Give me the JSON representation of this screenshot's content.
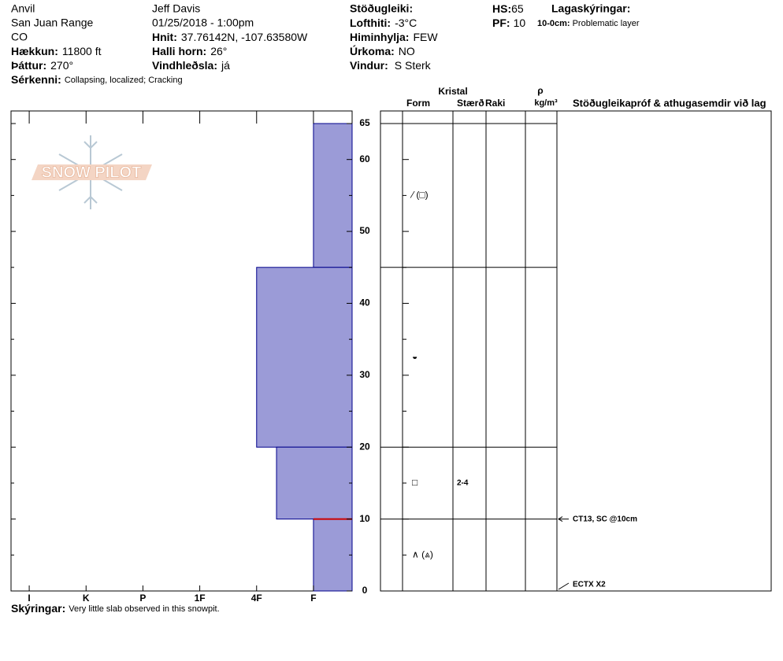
{
  "header": {
    "location": "Anvil",
    "range": "San Juan Range",
    "state": "CO",
    "elevation": {
      "label": "Hækkun:",
      "value": "11800 ft"
    },
    "aspect": {
      "label": "Þáttur:",
      "value": "270°"
    },
    "features": {
      "label": "Sérkenni:",
      "value": "Collapsing, localized;  Cracking"
    },
    "observer": "Jeff Davis",
    "datetime": "01/25/2018 - 1:00pm",
    "coords": {
      "label": "Hnit:",
      "value": "37.76142N, -107.63580W"
    },
    "slope": {
      "label": "Halli horn:",
      "value": "26°"
    },
    "wind_loading": {
      "label": "Vindhleðsla:",
      "value": "já"
    },
    "stability": {
      "label": "Stöðugleiki:"
    },
    "air_temp": {
      "label": "Lofthiti:",
      "value": "-3°C"
    },
    "sky": {
      "label": "Himinhylja:",
      "value": "FEW"
    },
    "precip": {
      "label": "Úrkoma:",
      "value": "NO"
    },
    "wind": {
      "label": "Vindur:",
      "value": "S Sterk"
    },
    "hs": {
      "label": "HS:",
      "value": "65"
    },
    "pf": {
      "label": "PF:",
      "value": "10"
    },
    "layer_notes": {
      "title": "Lagaskýringar:",
      "range": "10-0cm:",
      "text": "Problematic layer"
    }
  },
  "logo": "SNOW PILOT",
  "chart_data": {
    "type": "snowpit",
    "ylim": [
      0,
      65
    ],
    "yticks": [
      0,
      10,
      20,
      30,
      40,
      50,
      60,
      65
    ],
    "yminorticks": [
      5,
      15,
      25,
      35,
      45,
      55
    ],
    "xlim": [
      6.32,
      0.32
    ],
    "xticks": [
      {
        "value": 6,
        "label": "I"
      },
      {
        "value": 5,
        "label": "K"
      },
      {
        "value": 4,
        "label": "P"
      },
      {
        "value": 3,
        "label": "1F"
      },
      {
        "value": 2,
        "label": "4F"
      },
      {
        "value": 1,
        "label": "F"
      }
    ],
    "color": "#9b9bd7",
    "edge_color": "#00008b",
    "problem_color": "#cc0000",
    "layers": [
      {
        "top": 65,
        "bottom": 45,
        "hardness": 1
      },
      {
        "top": 45,
        "bottom": 20,
        "hardness": 2
      },
      {
        "top": 20,
        "bottom": 10,
        "hardness": 1.65
      },
      {
        "top": 10,
        "bottom": 0,
        "hardness": 1
      }
    ],
    "grains": [
      {
        "height": 55,
        "form": "⁄ (□)"
      },
      {
        "height": 32.5,
        "form": "◒"
      },
      {
        "height": 15,
        "form": "□",
        "size": "2-4"
      },
      {
        "height": 5,
        "form": "∧ (⩓)"
      }
    ],
    "tests": [
      {
        "height": 10,
        "text": "CT13, SC @10cm"
      },
      {
        "height": 0,
        "text": "ECTX  X2"
      }
    ],
    "columns": {
      "crystal": "Kristal",
      "form": "Form",
      "size": "Stærð",
      "moisture": "Raki",
      "density": "ρ",
      "density_unit": "kg/m³",
      "tests": "Stöðugleikapróf & athugasemdir við lag"
    }
  },
  "footer": {
    "label": "Skýringar:",
    "value": "Very little slab observed in this snowpit."
  }
}
